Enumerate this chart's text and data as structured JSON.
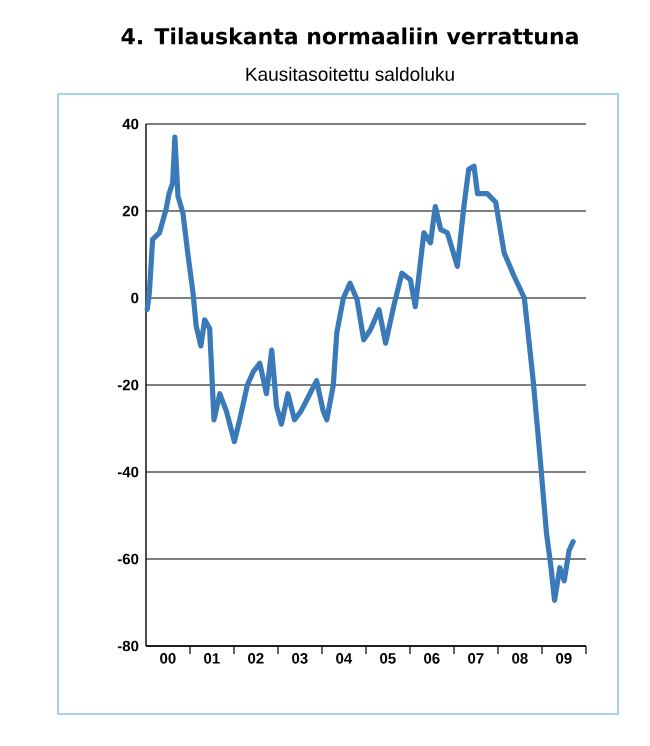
{
  "chart_data": {
    "type": "line",
    "title": "4. Tilauskanta normaaliin verrattuna",
    "subtitle": "Kausitasoitettu saldoluku",
    "x": [
      "2000-01-11",
      "2000-01-29",
      "2000-02-25",
      "2000-04-22",
      "2000-06-16",
      "2000-07-11",
      "2000-08-10",
      "2000-08-28",
      "2000-09-23",
      "2000-11-03",
      "2000-12-13",
      "2001-01-26",
      "2001-02-21",
      "2001-04-01",
      "2001-05-03",
      "2001-06-13",
      "2001-07-19",
      "2001-09-05",
      "2001-10-30",
      "2002-01-04",
      "2002-02-17",
      "2002-04-22",
      "2002-06-09",
      "2002-08-03",
      "2002-09-27",
      "2002-11-10",
      "2002-12-20",
      "2003-01-29",
      "2003-03-24",
      "2003-05-18",
      "2003-07-11",
      "2003-09-23",
      "2003-11-17",
      "2004-01-11",
      "2004-02-10",
      "2004-04-04",
      "2004-05-03",
      "2004-06-27",
      "2004-08-21",
      "2004-10-19",
      "2004-12-13",
      "2005-02-07",
      "2005-04-19",
      "2005-06-13",
      "2005-08-18",
      "2005-10-26",
      "2006-01-04",
      "2006-02-14",
      "2006-04-26",
      "2006-06-20",
      "2006-07-30",
      "2006-09-13",
      "2006-11-07",
      "2007-01-29",
      "2007-03-24",
      "2007-05-03",
      "2007-06-16",
      "2007-07-15",
      "2007-10-04",
      "2007-12-13",
      "2008-02-21",
      "2008-05-14",
      "2008-08-07",
      "2008-10-19",
      "2008-12-13",
      "2009-02-07",
      "2009-03-16",
      "2009-04-15",
      "2009-05-29",
      "2009-07-04",
      "2009-08-14",
      "2009-09-16"
    ],
    "series": [
      {
        "color": "#3a7ab8",
        "values": [
          -2.6,
          1.2,
          13.5,
          15,
          20.4,
          24,
          26.5,
          37,
          23.4,
          19.6,
          10.4,
          1.2,
          -6.4,
          -11,
          -5,
          -7,
          -28,
          -22,
          -26,
          -33,
          -28,
          -20,
          -17,
          -15,
          -22,
          -12,
          -25,
          -29,
          -22,
          -28,
          -26,
          -22,
          -19,
          -26,
          -28,
          -20,
          -8,
          0,
          3.4,
          -0.4,
          -9.6,
          -7.3,
          -2.7,
          -10.4,
          -2,
          5.7,
          4.2,
          -2,
          15,
          12.7,
          21,
          15.7,
          15,
          7.3,
          21,
          29.6,
          30.3,
          24,
          24,
          22,
          10.4,
          5,
          0,
          -18.8,
          -35.7,
          -54,
          -61.8,
          -69.5,
          -62,
          -65,
          -58,
          -56
        ]
      }
    ],
    "xlim": [
      "2000-01-01",
      "2010-01-01"
    ],
    "xticks": [
      {
        "value": "2000-07-01",
        "label": "00"
      },
      {
        "value": "2001-07-01",
        "label": "01"
      },
      {
        "value": "2002-07-01",
        "label": "02"
      },
      {
        "value": "2003-07-01",
        "label": "03"
      },
      {
        "value": "2004-07-01",
        "label": "04"
      },
      {
        "value": "2005-07-01",
        "label": "05"
      },
      {
        "value": "2006-07-01",
        "label": "06"
      },
      {
        "value": "2007-07-01",
        "label": "07"
      },
      {
        "value": "2008-07-01",
        "label": "08"
      },
      {
        "value": "2009-07-01",
        "label": "09"
      },
      {
        "value": "2001-01-01",
        "label": null
      },
      {
        "value": "2002-01-01",
        "label": null
      },
      {
        "value": "2003-01-01",
        "label": null
      },
      {
        "value": "2004-01-01",
        "label": null
      },
      {
        "value": "2005-01-01",
        "label": null
      },
      {
        "value": "2006-01-01",
        "label": null
      },
      {
        "value": "2007-01-01",
        "label": null
      },
      {
        "value": "2008-01-01",
        "label": null
      },
      {
        "value": "2009-01-01",
        "label": null
      },
      {
        "value": "2010-01-01",
        "label": null
      }
    ],
    "ylim": [
      -80,
      40
    ],
    "yticks": [
      -80,
      -60,
      -40,
      -20,
      0,
      20,
      40
    ],
    "grid": "y",
    "marker": "none",
    "line_style": "solid"
  }
}
